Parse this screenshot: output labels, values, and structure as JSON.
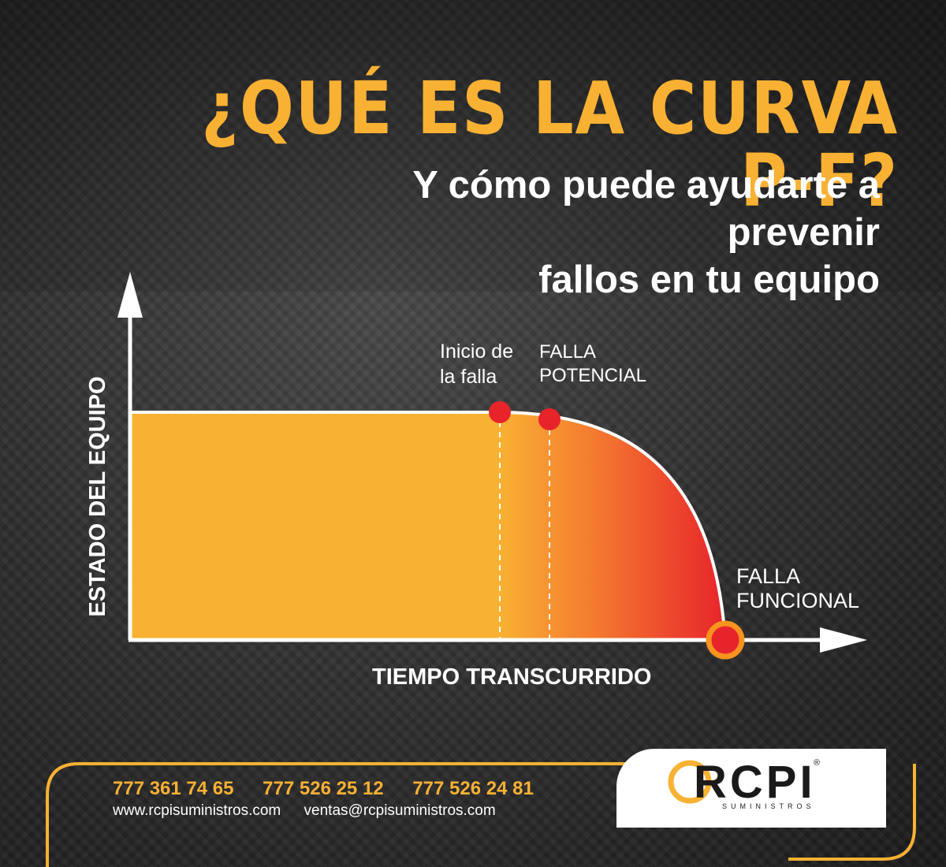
{
  "header": {
    "title": "¿QUÉ ES LA CURVA P-F?",
    "subtitle_line1": "Y cómo puede ayudarte a prevenir",
    "subtitle_line2": "fallos en tu equipo"
  },
  "diagram": {
    "y_axis_label": "ESTADO DEL EQUIPO",
    "x_axis_label": "TIEMPO TRANSCURRIDO",
    "point_inicio_line1": "Inicio de",
    "point_inicio_line2": "la falla",
    "point_potencial_line1": "FALLA",
    "point_potencial_line2": "POTENCIAL",
    "point_funcional_line1": "FALLA",
    "point_funcional_line2": "FUNCIONAL",
    "colors": {
      "fill_start": "#f8b133",
      "fill_end": "#e8242b",
      "marker": "#e8242b",
      "ring": "#f7931e",
      "axis": "#ffffff"
    }
  },
  "footer": {
    "phones": [
      "777 361 74 65",
      "777 526 25 12",
      "777 526 24 81"
    ],
    "website": "www.rcpisuministros.com",
    "email": "ventas@rcpisuministros.com",
    "logo_text": "RCPI",
    "logo_registered": "®",
    "logo_subtext": "SUMINISTROS",
    "accent_color": "#f8b133"
  }
}
